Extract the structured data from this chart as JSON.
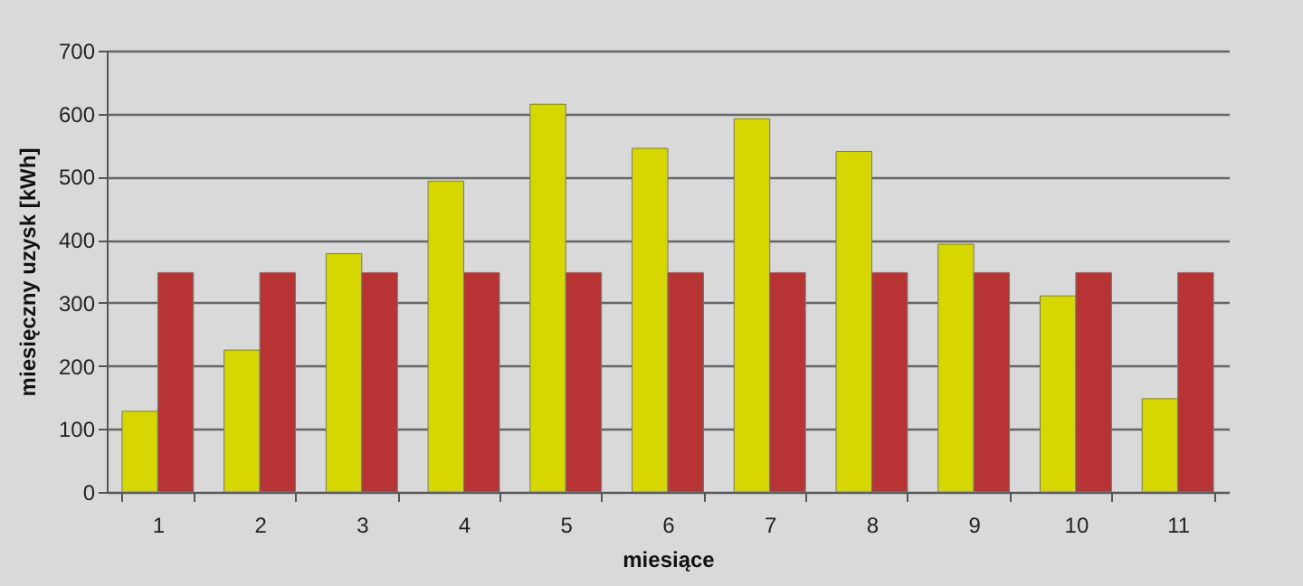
{
  "chart_data": {
    "type": "bar",
    "xlabel": "miesiące",
    "ylabel": "miesięczny uzysk [kWh]",
    "categories": [
      "1",
      "2",
      "3",
      "4",
      "5",
      "6",
      "7",
      "8",
      "9",
      "10",
      "11"
    ],
    "series": [
      {
        "color": "#d6d600",
        "values": [
          128,
          225,
          378,
          493,
          615,
          545,
          592,
          540,
          393,
          311,
          148
        ]
      },
      {
        "color": "#b83434",
        "values": [
          348,
          348,
          348,
          348,
          348,
          348,
          348,
          348,
          348,
          348,
          348
        ]
      }
    ],
    "ylim": [
      0,
      700
    ],
    "yticks": [
      0,
      100,
      200,
      300,
      400,
      500,
      600,
      700
    ],
    "grid": "y"
  }
}
